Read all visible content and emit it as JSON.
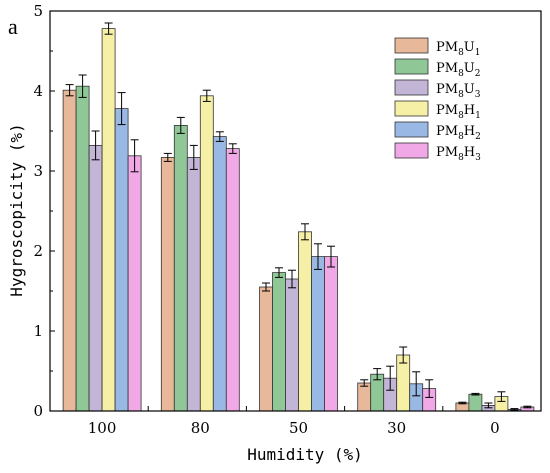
{
  "panel_label": "a",
  "chart_data": {
    "type": "bar",
    "title": "",
    "xlabel": "Humidity (%)",
    "ylabel": "Hygroscopicity (%)",
    "ylim": [
      0,
      5
    ],
    "yticks": [
      "0",
      "1",
      "2",
      "3",
      "4",
      "5"
    ],
    "categories": [
      "100",
      "80",
      "50",
      "30",
      "0"
    ],
    "legend_position": "top-right",
    "grid": false,
    "series": [
      {
        "name": "PM8U1",
        "label_parts": [
          "PM",
          "8",
          "U",
          "1"
        ],
        "color": "#e8b89a",
        "values": [
          4.01,
          3.17,
          1.55,
          0.35,
          0.1
        ],
        "errors": [
          0.07,
          0.05,
          0.05,
          0.04,
          0.01
        ]
      },
      {
        "name": "PM8U2",
        "label_parts": [
          "PM",
          "8",
          "U",
          "2"
        ],
        "color": "#8fc896",
        "values": [
          4.06,
          3.57,
          1.73,
          0.46,
          0.21
        ],
        "errors": [
          0.14,
          0.1,
          0.06,
          0.07,
          0.01
        ]
      },
      {
        "name": "PM8U3",
        "label_parts": [
          "PM",
          "8",
          "U",
          "3"
        ],
        "color": "#c2b5d6",
        "values": [
          3.32,
          3.17,
          1.65,
          0.41,
          0.07
        ],
        "errors": [
          0.18,
          0.15,
          0.11,
          0.15,
          0.03
        ]
      },
      {
        "name": "PM8H1",
        "label_parts": [
          "PM",
          "8",
          "H",
          "1"
        ],
        "color": "#f6f0a6",
        "values": [
          4.78,
          3.94,
          2.24,
          0.7,
          0.18
        ],
        "errors": [
          0.07,
          0.07,
          0.1,
          0.1,
          0.06
        ]
      },
      {
        "name": "PM8H2",
        "label_parts": [
          "PM",
          "8",
          "H",
          "2"
        ],
        "color": "#9ab8e4",
        "values": [
          3.78,
          3.43,
          1.93,
          0.34,
          0.02
        ],
        "errors": [
          0.2,
          0.06,
          0.16,
          0.15,
          0.01
        ]
      },
      {
        "name": "PM8H3",
        "label_parts": [
          "PM",
          "8",
          "H",
          "3"
        ],
        "color": "#f0a8e6",
        "values": [
          3.19,
          3.28,
          1.93,
          0.28,
          0.05
        ],
        "errors": [
          0.2,
          0.06,
          0.13,
          0.11,
          0.01
        ]
      }
    ]
  }
}
